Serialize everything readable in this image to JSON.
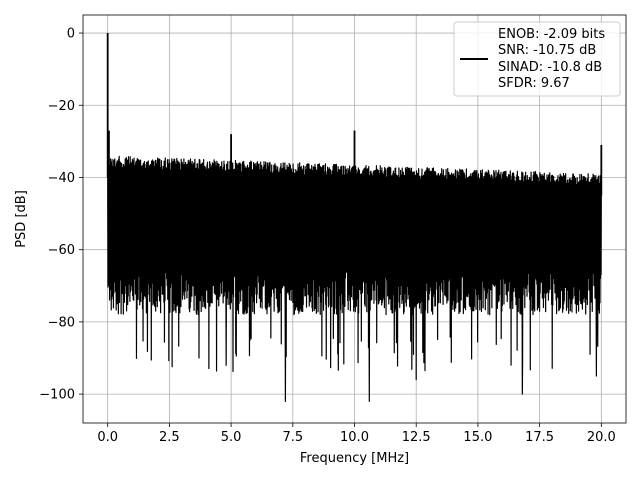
{
  "chart_data": {
    "type": "line",
    "title": "",
    "xlabel": "Frequency [MHz]",
    "ylabel": "PSD [dB]",
    "xlim": [
      -1.0,
      21.0
    ],
    "ylim": [
      -108,
      5
    ],
    "x_ticks": [
      0.0,
      2.5,
      5.0,
      7.5,
      10.0,
      12.5,
      15.0,
      17.5,
      20.0
    ],
    "x_tick_labels": [
      "0.0",
      "2.5",
      "5.0",
      "7.5",
      "10.0",
      "12.5",
      "15.0",
      "17.5",
      "20.0"
    ],
    "y_ticks": [
      0,
      -20,
      -40,
      -60,
      -80,
      -100
    ],
    "y_tick_labels": [
      "0",
      "−20",
      "−40",
      "−60",
      "−80",
      "−100"
    ],
    "grid": true,
    "legend_position": "top-right",
    "series": [
      {
        "legend_lines": [
          "ENOB: -2.09 bits",
          "SNR: -10.75 dB",
          "SINAD: -10.8 dB",
          "SFDR: 9.67"
        ],
        "color": "#000000",
        "x_range": [
          0.0,
          20.0
        ],
        "noise_upper_start": -34,
        "noise_upper_end": -39,
        "noise_lower_typical": -78,
        "noise_lower_min": -102,
        "peaks": [
          {
            "x": 0.0,
            "y": 0
          },
          {
            "x": 0.05,
            "y": -27
          },
          {
            "x": 5.0,
            "y": -28
          },
          {
            "x": 10.0,
            "y": -27
          },
          {
            "x": 20.0,
            "y": -31
          }
        ],
        "dips": [
          {
            "x": 7.2,
            "y": -102
          },
          {
            "x": 10.6,
            "y": -102
          },
          {
            "x": 16.8,
            "y": -100
          },
          {
            "x": 12.5,
            "y": -96
          },
          {
            "x": 19.8,
            "y": -95
          },
          {
            "x": 4.8,
            "y": -92
          }
        ]
      }
    ]
  }
}
